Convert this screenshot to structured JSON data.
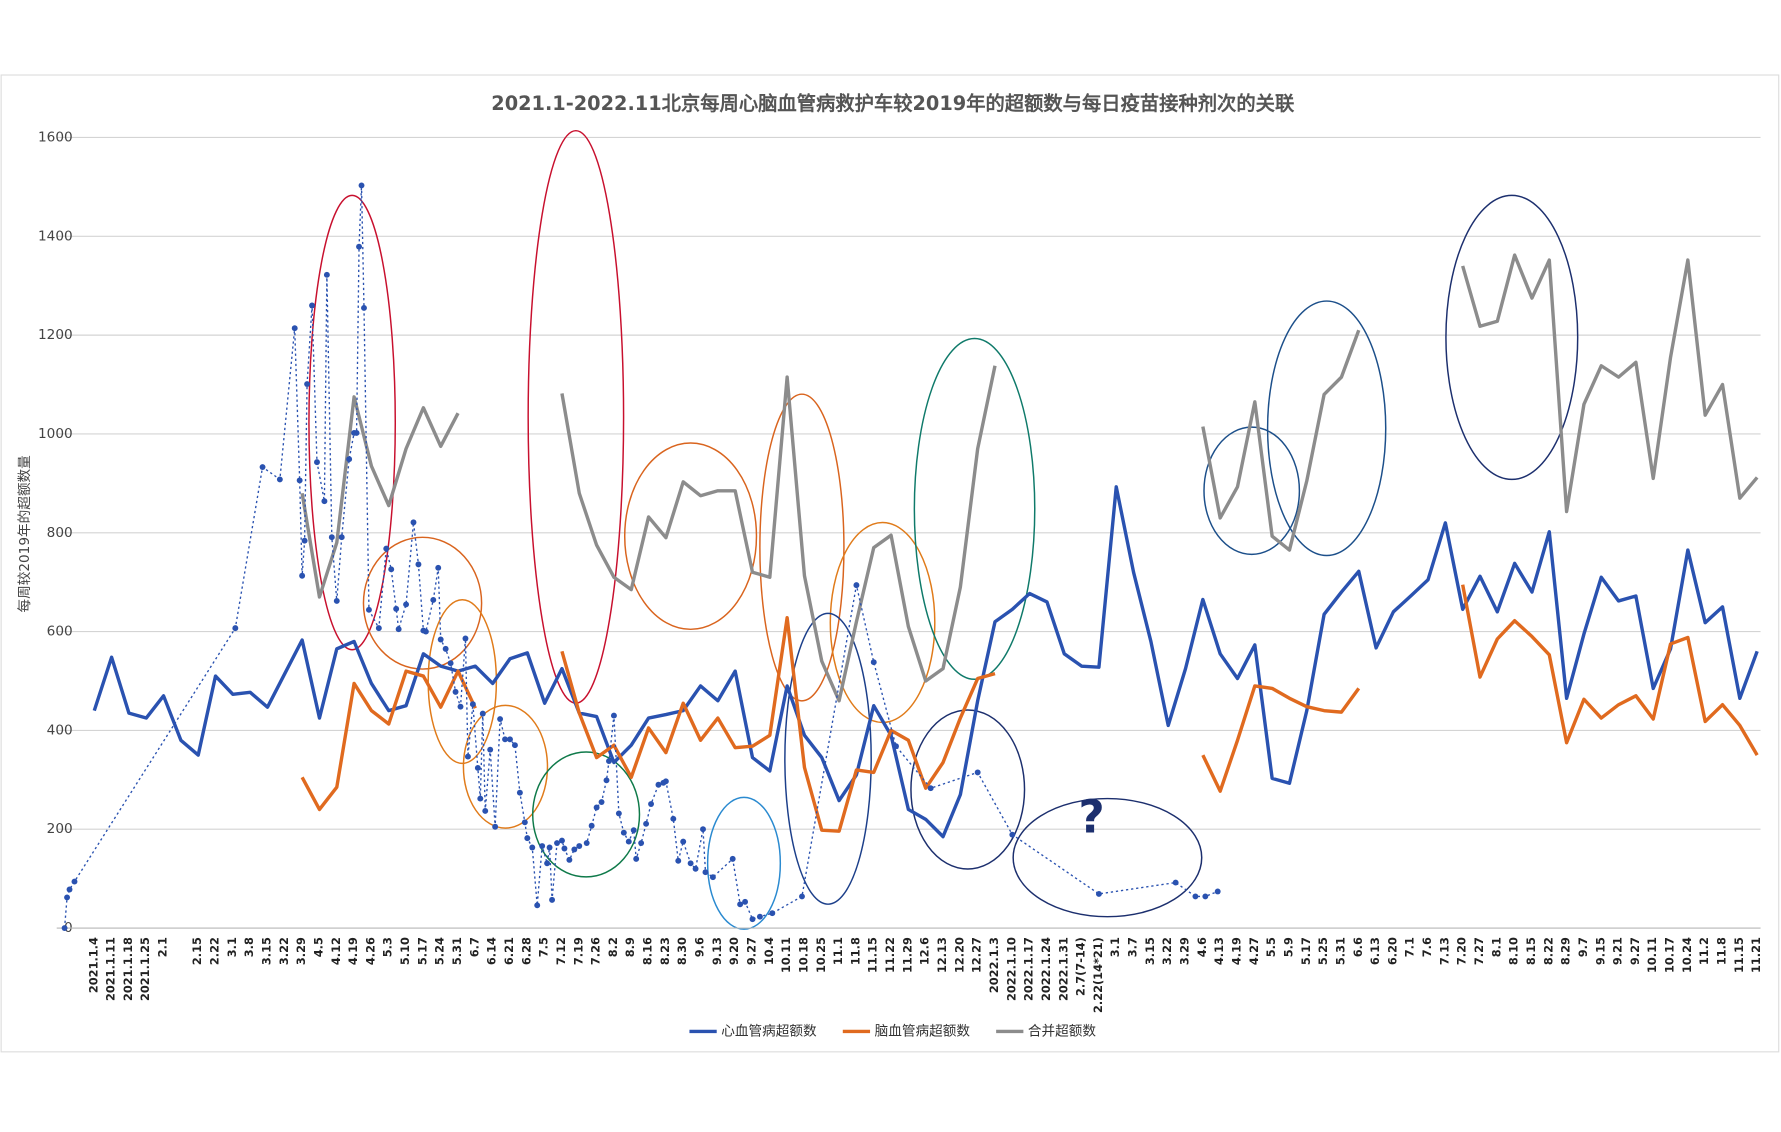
{
  "chart_data": {
    "type": "line",
    "title": "2021.1-2022.11北京每周心脑血管病救护车较2019年的超额数与每日疫苗接种剂次的关联",
    "ylabel": "每周较2019年的超额数量",
    "annotation": "?",
    "ylim": [
      0,
      1600
    ],
    "yticks": [
      0,
      200,
      400,
      600,
      800,
      1000,
      1200,
      1400,
      1600
    ],
    "grid": true,
    "legend": "bottom",
    "categories": [
      "2021.1.4",
      "2021.1.11",
      "2021.1.18",
      "2021.1.25",
      "2.1",
      null,
      "2.15",
      "2.22",
      "3.1",
      "3.8",
      "3.15",
      "3.22",
      "3.29",
      "4.5",
      "4.12",
      "4.19",
      "4.26",
      "5.3",
      "5.10",
      "5.17",
      "5.24",
      "5.31",
      "6.7",
      "6.14",
      "6.21",
      "6.28",
      "7.5",
      "7.12",
      "7.19",
      "7.26",
      "8.2",
      "8.9",
      "8.16",
      "8.23",
      "8.30",
      "9.6",
      "9.13",
      "9.20",
      "9.27",
      "10.4",
      "10.11",
      "10.18",
      "10.25",
      "11.1",
      "11.8",
      "11.15",
      "11.22",
      "11.29",
      "12.6",
      "12.13",
      "12.20",
      "12.27",
      "2022.1.3",
      "2022.1.10",
      "2022.1.17",
      "2022.1.24",
      "2022.1.31",
      "2.7(7-14)",
      "2.22(14*21)",
      "3.1",
      "3.7",
      "3.15",
      "3.22",
      "3.29",
      "4.6",
      "4.13",
      "4.19",
      "4.27",
      "5.5",
      "5.9",
      "5.17",
      "5.25",
      "5.31",
      "6.6",
      "6.13",
      "6.20",
      "7.1",
      "7.6",
      "7.13",
      "7.20",
      "7.27",
      "8.1",
      "8.10",
      "8.15",
      "8.22",
      "8.29",
      "9.7",
      "9.15",
      "9.21",
      "9.27",
      "10.11",
      "10.17",
      "10.24",
      "11.2",
      "11.8",
      "11.15",
      "11.21"
    ],
    "series": [
      {
        "name": "心血管病超额数",
        "color": "#2a52b0",
        "values": [
          440,
          548,
          435,
          425,
          470,
          380,
          350,
          510,
          473,
          477,
          447,
          515,
          583,
          425,
          565,
          580,
          495,
          440,
          450,
          555,
          530,
          520,
          530,
          495,
          545,
          557,
          455,
          525,
          435,
          428,
          335,
          370,
          425,
          432,
          440,
          490,
          460,
          520,
          345,
          318,
          490,
          390,
          345,
          258,
          310,
          450,
          390,
          240,
          220,
          185,
          270,
          460,
          620,
          645,
          677,
          660,
          555,
          530,
          528,
          893,
          720,
          580,
          410,
          525,
          665,
          555,
          505,
          573,
          303,
          293,
          440,
          635,
          680,
          722,
          567,
          640,
          672,
          705,
          820,
          645,
          712,
          640,
          738,
          680,
          802,
          465,
          595,
          710,
          662,
          672,
          485,
          565,
          765,
          618,
          650,
          465,
          560
        ]
      },
      {
        "name": "脑血管病超额数",
        "color": "#e06a1f",
        "values": [
          null,
          null,
          null,
          null,
          null,
          null,
          null,
          null,
          null,
          null,
          null,
          null,
          305,
          240,
          285,
          495,
          440,
          413,
          520,
          510,
          447,
          520,
          445,
          null,
          null,
          null,
          null,
          560,
          435,
          345,
          370,
          305,
          405,
          355,
          455,
          380,
          425,
          365,
          368,
          390,
          628,
          325,
          198,
          196,
          320,
          315,
          400,
          380,
          283,
          335,
          425,
          505,
          515,
          null,
          null,
          null,
          null,
          null,
          null,
          null,
          null,
          null,
          null,
          null,
          350,
          277,
          380,
          490,
          485,
          465,
          448,
          440,
          437,
          485,
          null,
          null,
          null,
          null,
          null,
          695,
          508,
          585,
          622,
          590,
          553,
          375,
          463,
          425,
          452,
          470,
          423,
          575,
          588,
          418,
          452,
          410,
          350
        ]
      },
      {
        "name": "合并超额数",
        "color": "#8c8c8c",
        "values": [
          null,
          null,
          null,
          null,
          null,
          null,
          null,
          null,
          null,
          null,
          null,
          null,
          880,
          670,
          780,
          1075,
          935,
          855,
          970,
          1053,
          975,
          1042,
          null,
          null,
          null,
          null,
          null,
          1082,
          880,
          775,
          710,
          685,
          832,
          790,
          903,
          875,
          885,
          885,
          720,
          710,
          1115,
          713,
          540,
          460,
          620,
          770,
          795,
          610,
          500,
          525,
          690,
          970,
          1138,
          null,
          null,
          null,
          null,
          null,
          null,
          null,
          null,
          null,
          null,
          null,
          1015,
          830,
          893,
          1065,
          793,
          765,
          905,
          1080,
          1115,
          1210,
          null,
          null,
          null,
          null,
          null,
          1340,
          1218,
          1228,
          1362,
          1275,
          1352,
          843,
          1060,
          1138,
          1115,
          1145,
          910,
          1155,
          1352,
          1038,
          1100,
          870,
          912
        ]
      },
      {
        "color": "#2a52b0",
        "style": "dotted",
        "x": [
          -12,
          -11,
          -10,
          -8,
          57,
          68,
          75,
          81,
          83,
          84,
          85,
          86,
          88,
          90,
          93,
          94,
          96,
          98,
          100,
          103,
          105,
          106,
          107,
          108,
          109,
          111,
          115,
          118,
          120,
          122,
          123,
          126,
          129,
          131,
          133,
          134,
          137,
          139,
          140,
          142,
          144,
          146,
          148,
          150,
          151,
          153,
          155,
          156,
          157,
          158,
          160,
          162,
          164,
          166,
          168,
          170,
          172,
          174,
          175,
          177,
          179,
          181,
          183,
          184,
          185,
          187,
          189,
          190,
          192,
          194,
          196,
          199,
          201,
          203,
          205,
          207,
          208,
          210,
          212,
          214,
          216,
          218,
          219,
          221,
          223,
          225,
          228,
          230,
          231,
          234,
          236,
          238,
          241,
          243,
          246,
          247,
          250,
          258,
          261,
          263,
          266,
          269,
          274,
          286,
          308,
          315,
          324,
          338,
          357,
          371,
          406,
          437,
          445,
          449,
          454
        ],
        "values": [
          0,
          62,
          78,
          94,
          607,
          933,
          908,
          1214,
          906,
          713,
          784,
          1101,
          1260,
          943,
          864,
          1322,
          791,
          662,
          791,
          949,
          1002,
          1002,
          1379,
          1503,
          1255,
          644,
          607,
          768,
          726,
          646,
          605,
          655,
          821,
          736,
          602,
          600,
          664,
          729,
          584,
          565,
          536,
          478,
          448,
          586,
          347,
          453,
          324,
          262,
          434,
          237,
          361,
          205,
          423,
          382,
          382,
          370,
          274,
          214,
          182,
          163,
          46,
          166,
          131,
          163,
          57,
          172,
          177,
          161,
          138,
          159,
          166,
          172,
          207,
          244,
          255,
          299,
          338,
          430,
          232,
          193,
          175,
          198,
          140,
          172,
          211,
          251,
          290,
          294,
          297,
          221,
          136,
          175,
          131,
          120,
          200,
          113,
          103,
          140,
          48,
          53,
          18,
          23,
          30,
          64,
          694,
          538,
          368,
          283,
          315,
          189,
          69,
          92,
          64,
          64,
          74
        ]
      }
    ]
  }
}
